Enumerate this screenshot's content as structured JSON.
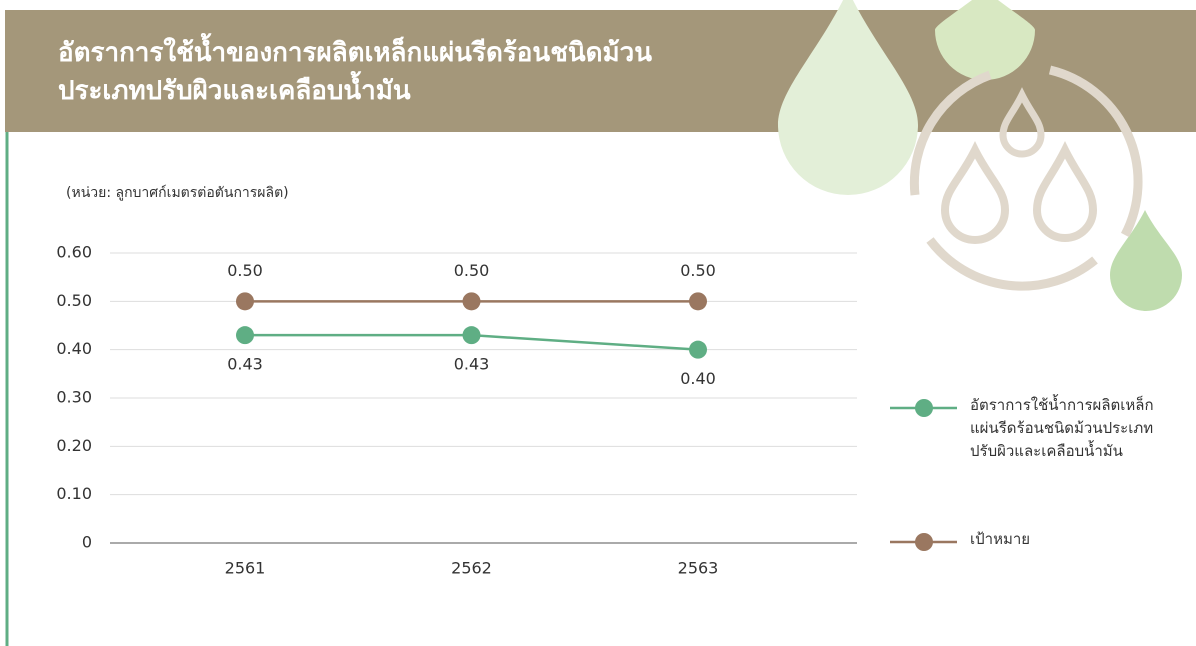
{
  "chart_data": {
    "type": "line",
    "title": [
      "อัตราการใช้น้ำของการผลิตเหล็กแผ่นรีดร้อนชนิดม้วน",
      "ประเภทปรับผิวและเคลือบน้ำมัน"
    ],
    "subtitle": "(หน่วย: ลูกบาศก์เมตรต่อตันการผลิต)",
    "categories": [
      "2561",
      "2562",
      "2563"
    ],
    "series": [
      {
        "name": "อัตราการใช้น้ำการผลิตเหล็กแผ่นรีดร้อนชนิดม้วนประเภทปรับผิวและเคลือบน้ำมัน",
        "color": "#5fae84",
        "values": [
          0.43,
          0.43,
          0.4
        ],
        "value_labels": [
          "0.43",
          "0.43",
          "0.40"
        ]
      },
      {
        "name": "เป้าหมาย",
        "color": "#9a7760",
        "values": [
          0.5,
          0.5,
          0.5
        ],
        "value_labels": [
          "0.50",
          "0.50",
          "0.50"
        ]
      }
    ],
    "ylim": [
      0,
      0.6
    ],
    "yticks": [
      0,
      {
        "value": 0.1,
        "label": "0.10"
      },
      {
        "value": 0.2,
        "label": "0.20"
      },
      {
        "value": 0.3,
        "label": "0.30"
      },
      {
        "value": 0.4,
        "label": "0.40"
      },
      {
        "value": 0.5,
        "label": "0.50"
      },
      {
        "value": 0.6,
        "label": "0.60"
      }
    ],
    "grid": true,
    "legend": "right"
  }
}
